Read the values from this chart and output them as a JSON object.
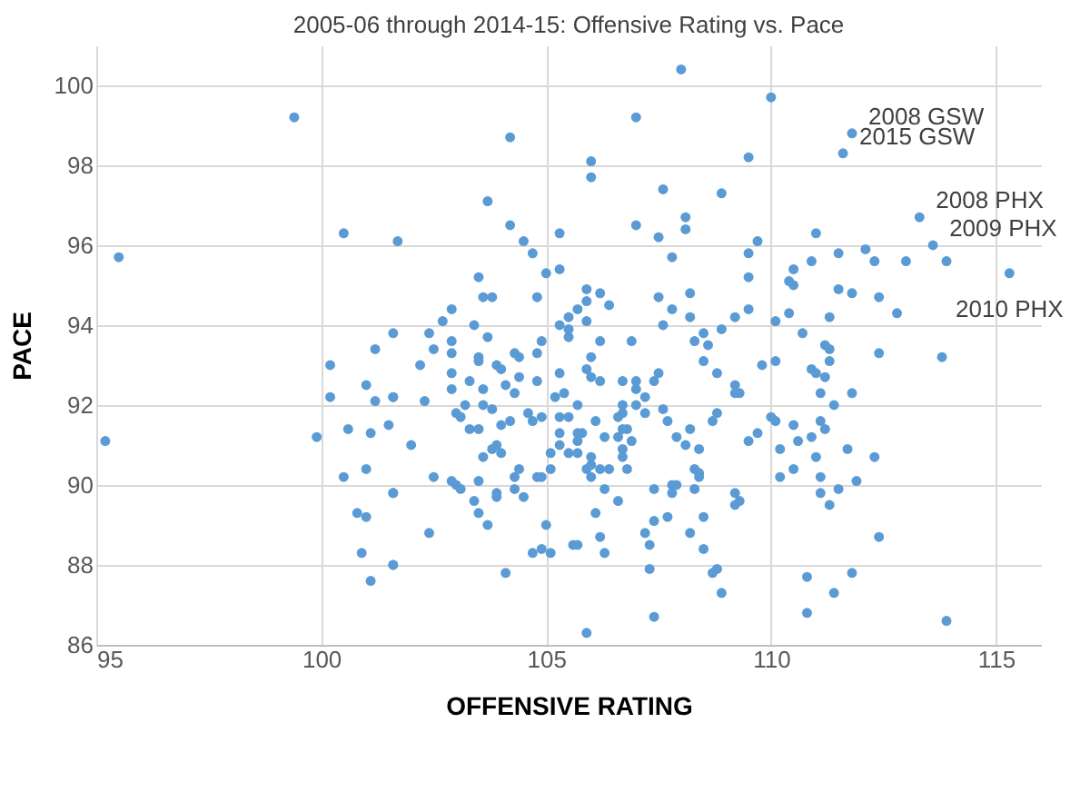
{
  "chart_data": {
    "type": "scatter",
    "title": "2005-06 through 2014-15: Offensive Rating vs. Pace",
    "xlabel": "OFFENSIVE RATING",
    "ylabel": "PACE",
    "xlim": [
      95,
      116
    ],
    "xticks": [
      95,
      100,
      105,
      110,
      115
    ],
    "ylim": [
      86,
      101
    ],
    "yticks": [
      86,
      88,
      90,
      92,
      94,
      96,
      98,
      100
    ],
    "grid": true,
    "marker": "circle",
    "legend": false,
    "series": [
      {
        "color": "#5b9bd5",
        "x": [
          111.8,
          111.6,
          113.3,
          113.6,
          115.3,
          95.2,
          95.5,
          99.4,
          100.5,
          101.7,
          108.0,
          107.0,
          104.2,
          106.0,
          106.0,
          107.6,
          108.9,
          103.7,
          104.2,
          107.0,
          108.1,
          108.1,
          109.5,
          104.5,
          105.3,
          107.5,
          104.7,
          107.8,
          109.5,
          105.0,
          105.3,
          103.5,
          103.6,
          103.8,
          104.8,
          105.9,
          105.9,
          106.2,
          106.4,
          105.7,
          105.5,
          105.9,
          105.3,
          107.5,
          108.2,
          107.8,
          108.2,
          107.6,
          109.5,
          109.5,
          109.2,
          108.9,
          102.9,
          102.7,
          103.4,
          101.6,
          102.4,
          102.5,
          102.9,
          102.9,
          103.7,
          104.8,
          104.9,
          105.5,
          105.5,
          106.2,
          106.9,
          108.3,
          108.5,
          108.6,
          106.0,
          110.0,
          109.7,
          111.0,
          110.5,
          110.9,
          111.5,
          112.1,
          112.3,
          113.0,
          113.9,
          110.4,
          110.5,
          111.5,
          111.8,
          112.4,
          112.8,
          111.3,
          110.4,
          110.1,
          110.7,
          111.2,
          111.3,
          112.4,
          113.8,
          110.1,
          111.3,
          109.8,
          110.9,
          111.0,
          111.2,
          109.2,
          109.2,
          109.3,
          111.1,
          111.8,
          111.4,
          110.0,
          110.1,
          110.5,
          111.1,
          111.2,
          109.5,
          109.7,
          110.6,
          110.9,
          110.2,
          111.7,
          111.0,
          112.3,
          110.5,
          110.2,
          111.1,
          111.9,
          109.2,
          109.2,
          109.3,
          111.5,
          111.1,
          111.3,
          112.4,
          110.8,
          111.8,
          111.4,
          110.8,
          113.9,
          100.2,
          101.0,
          101.2,
          100.2,
          101.6,
          99.9,
          100.6,
          101.1,
          101.5,
          101.0,
          100.5,
          101.6,
          100.8,
          101.0,
          100.9,
          101.6,
          101.1,
          101.2,
          102.2,
          102.9,
          102.9,
          103.3,
          103.5,
          103.5,
          103.9,
          104.0,
          104.3,
          104.4,
          103.6,
          104.1,
          104.3,
          104.4,
          104.8,
          101.6,
          102.3,
          103.0,
          103.1,
          103.2,
          103.6,
          103.8,
          103.3,
          103.5,
          104.0,
          104.2,
          104.6,
          104.7,
          104.9,
          105.2,
          105.4,
          105.3,
          105.7,
          105.3,
          105.5,
          105.3,
          105.7,
          105.8,
          105.7,
          105.9,
          106.0,
          106.2,
          106.1,
          106.7,
          107.0,
          107.0,
          107.4,
          107.5,
          108.5,
          108.8,
          106.7,
          107.0,
          107.2,
          106.6,
          106.7,
          106.7,
          106.8,
          106.3,
          106.6,
          107.2,
          107.6,
          107.7,
          108.2,
          108.7,
          108.8,
          107.9,
          108.1,
          108.4,
          106.7,
          106.7,
          106.9,
          106.8,
          102.0,
          103.6,
          103.8,
          103.9,
          104.0,
          105.1,
          105.3,
          105.5,
          105.7,
          106.0,
          105.9,
          106.0,
          106.2,
          106.4,
          104.4,
          104.3,
          104.8,
          104.9,
          105.1,
          106.0,
          102.5,
          102.9,
          103.0,
          103.1,
          103.5,
          103.9,
          103.9,
          104.3,
          104.5,
          103.4,
          103.5,
          101.6,
          103.7,
          102.4,
          101.6,
          104.1,
          105.0,
          104.7,
          104.9,
          105.1,
          105.6,
          105.7,
          106.2,
          106.1,
          106.3,
          106.3,
          106.6,
          107.4,
          107.2,
          107.3,
          107.3,
          107.7,
          107.4,
          107.8,
          107.8,
          107.9,
          108.3,
          108.4,
          108.4,
          108.3,
          108.5,
          108.2,
          108.5,
          108.7,
          108.8,
          108.9,
          107.4,
          105.9
        ],
        "values": [
          98.8,
          98.3,
          96.7,
          96.0,
          95.3,
          91.1,
          95.7,
          99.2,
          96.3,
          96.1,
          100.4,
          99.2,
          98.7,
          98.1,
          97.7,
          97.4,
          97.3,
          97.1,
          96.5,
          96.5,
          96.7,
          96.4,
          98.2,
          96.1,
          96.3,
          96.2,
          95.8,
          95.7,
          95.8,
          95.3,
          95.4,
          95.2,
          94.7,
          94.7,
          94.7,
          94.9,
          94.6,
          94.8,
          94.5,
          94.4,
          94.2,
          94.1,
          94.0,
          94.7,
          94.8,
          94.4,
          94.2,
          94.0,
          95.2,
          94.4,
          94.2,
          93.9,
          94.4,
          94.1,
          94.0,
          93.8,
          93.8,
          93.4,
          93.6,
          93.3,
          93.7,
          93.3,
          93.6,
          93.9,
          93.7,
          93.6,
          93.6,
          93.6,
          93.8,
          93.5,
          93.2,
          99.7,
          96.1,
          96.3,
          95.4,
          95.6,
          95.8,
          95.9,
          95.6,
          95.6,
          95.6,
          95.1,
          95.0,
          94.9,
          94.8,
          94.7,
          94.3,
          94.2,
          94.3,
          94.1,
          93.8,
          93.5,
          93.4,
          93.3,
          93.2,
          93.1,
          93.1,
          93.0,
          92.9,
          92.8,
          92.7,
          92.5,
          92.3,
          92.3,
          92.3,
          92.3,
          92.0,
          91.7,
          91.6,
          91.5,
          91.6,
          91.4,
          91.1,
          91.3,
          91.1,
          91.2,
          90.9,
          90.9,
          90.7,
          90.7,
          90.4,
          90.2,
          90.2,
          90.1,
          89.8,
          89.5,
          89.6,
          89.9,
          89.8,
          89.5,
          88.7,
          87.7,
          87.8,
          87.3,
          86.8,
          86.6,
          93.0,
          92.5,
          92.1,
          92.2,
          92.2,
          91.2,
          91.4,
          91.3,
          91.5,
          90.4,
          90.2,
          89.8,
          89.3,
          89.2,
          88.3,
          88.0,
          87.6,
          93.4,
          93.0,
          92.8,
          92.4,
          92.6,
          93.2,
          93.1,
          93.0,
          92.9,
          93.3,
          93.2,
          92.4,
          92.5,
          92.3,
          92.7,
          92.6,
          92.2,
          92.1,
          91.8,
          91.7,
          92.0,
          92.0,
          91.9,
          91.4,
          91.4,
          91.5,
          91.6,
          91.8,
          91.6,
          91.7,
          92.2,
          92.3,
          92.8,
          92.0,
          91.7,
          91.7,
          91.3,
          91.3,
          91.3,
          91.1,
          92.9,
          92.7,
          92.6,
          91.6,
          92.6,
          92.6,
          92.4,
          92.6,
          92.8,
          93.1,
          92.8,
          92.0,
          92.0,
          92.2,
          91.7,
          91.8,
          91.4,
          91.4,
          91.2,
          91.2,
          91.8,
          91.9,
          91.6,
          91.4,
          91.6,
          91.8,
          91.2,
          91.0,
          90.9,
          90.9,
          90.7,
          91.1,
          90.4,
          91.0,
          90.7,
          90.9,
          91.0,
          90.8,
          90.8,
          91.0,
          90.8,
          90.8,
          90.7,
          90.4,
          90.5,
          90.4,
          90.4,
          90.4,
          90.2,
          90.2,
          90.2,
          90.4,
          90.2,
          90.2,
          90.1,
          90.0,
          89.9,
          90.1,
          89.8,
          89.7,
          89.9,
          89.7,
          89.6,
          89.3,
          89.8,
          89.0,
          88.8,
          88.0,
          87.8,
          89.0,
          88.3,
          88.4,
          88.3,
          88.5,
          88.5,
          88.7,
          89.3,
          89.9,
          88.3,
          89.6,
          89.1,
          88.8,
          88.5,
          87.9,
          89.2,
          89.9,
          89.8,
          90.0,
          90.0,
          90.4,
          90.3,
          90.2,
          89.9,
          89.2,
          88.8,
          88.4,
          87.8,
          87.9,
          87.3,
          86.7,
          86.3
        ]
      }
    ],
    "annotations": [
      {
        "text": "2008 GSW",
        "x": 111.8,
        "y": 98.8
      },
      {
        "text": "2015 GSW",
        "x": 111.6,
        "y": 98.3
      },
      {
        "text": "2008 PHX",
        "x": 113.3,
        "y": 96.7
      },
      {
        "text": "2009 PHX",
        "x": 113.6,
        "y": 96.0
      },
      {
        "text": "2010 PHX",
        "x": 115.3,
        "y": 95.3
      }
    ]
  }
}
